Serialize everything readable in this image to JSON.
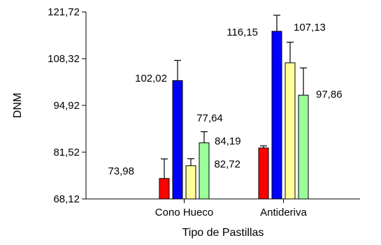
{
  "chart_data": {
    "type": "bar",
    "title": "",
    "xlabel": "Tipo de Pastillas",
    "ylabel": "DNM",
    "categories": [
      "Cono Hueco",
      "Antideriva"
    ],
    "ylim": [
      68.12,
      121.72
    ],
    "yticks": [
      68.12,
      81.52,
      94.92,
      108.32,
      121.72
    ],
    "ytick_labels": [
      "68,12",
      "81,52",
      "94,92",
      "108,32",
      "121,72"
    ],
    "grid": false,
    "legend": "none",
    "series": [
      {
        "color": "#ff0000",
        "values": [
          73.98,
          82.72
        ],
        "error": [
          5.6,
          0.6
        ],
        "labels": [
          "73,98",
          "82,72"
        ]
      },
      {
        "color": "#0000ff",
        "values": [
          102.02,
          116.15
        ],
        "error": [
          5.8,
          4.6
        ],
        "labels": [
          "102,02",
          "116,15"
        ]
      },
      {
        "color": "#ffff99",
        "values": [
          77.64,
          107.13
        ],
        "error": [
          2.0,
          5.9
        ],
        "labels": [
          "77,64",
          "107,13"
        ]
      },
      {
        "color": "#99ff99",
        "values": [
          84.19,
          97.86
        ],
        "error": [
          3.2,
          7.8
        ],
        "labels": [
          "84,19",
          "97,86"
        ]
      }
    ]
  }
}
